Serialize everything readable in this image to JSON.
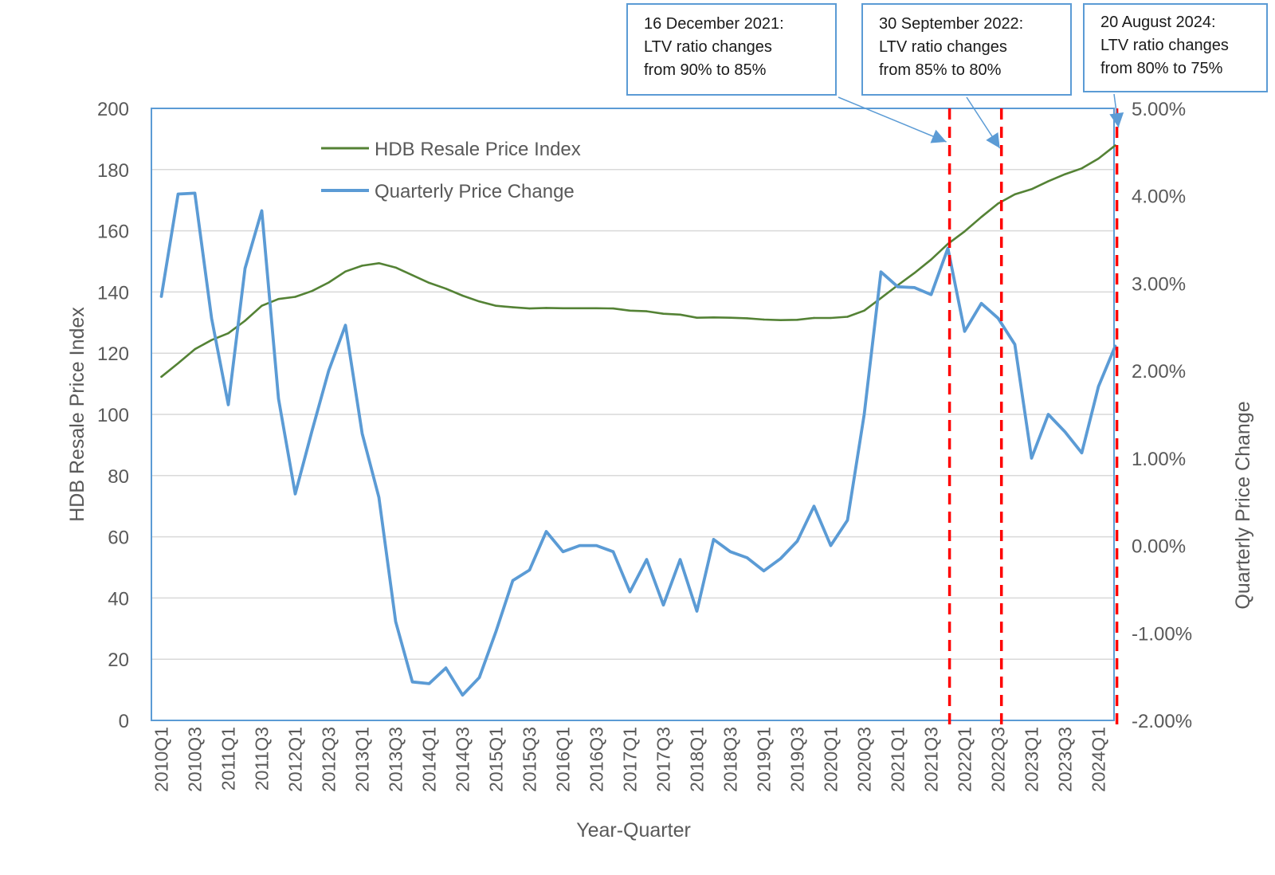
{
  "chart_data": {
    "type": "line",
    "xlabel": "Year-Quarter",
    "ylabel_left": "HDB Resale Price Index",
    "ylabel_right": "Quarterly Price Change",
    "ylim_left": [
      0,
      200
    ],
    "ylim_right": [
      -2.0,
      5.0
    ],
    "left_ticks": [
      "0",
      "20",
      "40",
      "60",
      "80",
      "100",
      "120",
      "140",
      "160",
      "180",
      "200"
    ],
    "right_ticks": [
      "-2.00%",
      "-1.00%",
      "0.00%",
      "1.00%",
      "2.00%",
      "3.00%",
      "4.00%",
      "5.00%"
    ],
    "grid": true,
    "legend_position": "top-left",
    "categories": [
      "2010Q1",
      "2010Q2",
      "2010Q3",
      "2010Q4",
      "2011Q1",
      "2011Q2",
      "2011Q3",
      "2011Q4",
      "2012Q1",
      "2012Q2",
      "2012Q3",
      "2012Q4",
      "2013Q1",
      "2013Q2",
      "2013Q3",
      "2013Q4",
      "2014Q1",
      "2014Q2",
      "2014Q3",
      "2014Q4",
      "2015Q1",
      "2015Q2",
      "2015Q3",
      "2015Q4",
      "2016Q1",
      "2016Q2",
      "2016Q3",
      "2016Q4",
      "2017Q1",
      "2017Q2",
      "2017Q3",
      "2017Q4",
      "2018Q1",
      "2018Q2",
      "2018Q3",
      "2018Q4",
      "2019Q1",
      "2019Q2",
      "2019Q3",
      "2019Q4",
      "2020Q1",
      "2020Q2",
      "2020Q3",
      "2020Q4",
      "2021Q1",
      "2021Q2",
      "2021Q3",
      "2021Q4",
      "2022Q1",
      "2022Q2",
      "2022Q3",
      "2022Q4",
      "2023Q1",
      "2023Q2",
      "2023Q3",
      "2023Q4",
      "2024Q1",
      "2024Q2"
    ],
    "x_tick_labels": [
      "2010Q1",
      "2010Q3",
      "2011Q1",
      "2011Q3",
      "2012Q1",
      "2012Q3",
      "2013Q1",
      "2013Q3",
      "2014Q1",
      "2014Q3",
      "2015Q1",
      "2015Q3",
      "2016Q1",
      "2016Q3",
      "2017Q1",
      "2017Q3",
      "2018Q1",
      "2018Q3",
      "2019Q1",
      "2019Q3",
      "2020Q1",
      "2020Q3",
      "2021Q1",
      "2021Q3",
      "2022Q1",
      "2022Q3",
      "2023Q1",
      "2023Q3",
      "2024Q1"
    ],
    "series": [
      {
        "name": "HDB Resale Price Index",
        "axis": "left",
        "color": "#548235",
        "values": [
          112.3,
          116.7,
          121.3,
          124.3,
          126.5,
          130.6,
          135.5,
          137.7,
          138.4,
          140.3,
          143.1,
          146.7,
          148.6,
          149.4,
          148.0,
          145.5,
          143.0,
          141.1,
          138.8,
          136.9,
          135.5,
          135.0,
          134.6,
          134.8,
          134.7,
          134.7,
          134.7,
          134.6,
          133.9,
          133.7,
          132.9,
          132.6,
          131.6,
          131.7,
          131.6,
          131.4,
          131.0,
          130.8,
          130.9,
          131.5,
          131.5,
          131.9,
          133.9,
          138.0,
          142.2,
          146.2,
          150.6,
          155.7,
          159.8,
          164.5,
          168.9,
          171.9,
          173.6,
          176.2,
          178.5,
          180.4,
          183.6,
          187.9
        ]
      },
      {
        "name": "Quarterly Price Change",
        "axis": "right",
        "color": "#5b9bd5",
        "values": [
          2.85,
          4.02,
          4.03,
          2.6,
          1.61,
          3.17,
          3.83,
          1.68,
          0.59,
          1.31,
          2.0,
          2.52,
          1.28,
          0.55,
          -0.87,
          -1.56,
          -1.58,
          -1.4,
          -1.71,
          -1.51,
          -0.98,
          -0.4,
          -0.28,
          0.16,
          -0.07,
          0.0,
          0.0,
          -0.07,
          -0.53,
          -0.16,
          -0.68,
          -0.16,
          -0.75,
          0.07,
          -0.07,
          -0.14,
          -0.29,
          -0.15,
          0.05,
          0.45,
          0.0,
          0.29,
          1.5,
          3.13,
          2.96,
          2.95,
          2.87,
          3.4,
          2.45,
          2.77,
          2.6,
          2.3,
          1.0,
          1.5,
          1.3,
          1.06,
          1.82,
          2.28
        ]
      }
    ],
    "event_lines": [
      {
        "name": "16 December 2021",
        "position": 47.1
      },
      {
        "name": "30 September 2022",
        "position": 50.2
      },
      {
        "name": "20 August 2024",
        "position": 57.1
      }
    ],
    "annotations": [
      {
        "lines": [
          "16 December 2021:",
          "LTV ratio changes",
          "from 90% to 85%"
        ]
      },
      {
        "lines": [
          "30 September 2022:",
          "LTV ratio changes",
          "from 85% to 80%"
        ]
      },
      {
        "lines": [
          "20 August 2024:",
          "LTV ratio changes",
          "from 80% to 75%"
        ]
      }
    ]
  }
}
